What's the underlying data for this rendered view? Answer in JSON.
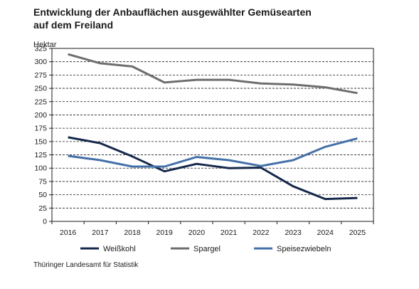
{
  "chart_data": {
    "type": "line",
    "title": "Entwicklung der Anbauflächen ausgewählter Gemüsearten auf dem Freiland",
    "title_lines": [
      "Entwicklung der Anbauflächen ausgewählter Gemüsearten",
      "auf dem Freiland"
    ],
    "ylabel": "Hektar",
    "xlabel": "",
    "x": [
      "2016",
      "2017",
      "2018",
      "2019",
      "2020",
      "2021",
      "2022",
      "2023",
      "2024",
      "2025"
    ],
    "ylim": [
      0,
      325
    ],
    "yticks": [
      0,
      25,
      50,
      75,
      100,
      125,
      150,
      175,
      200,
      225,
      250,
      275,
      300,
      325
    ],
    "grid": "horizontal dashed",
    "legend_position": "bottom",
    "series": [
      {
        "name": "Weißkohl",
        "color": "#15284b",
        "values": [
          158,
          147,
          122,
          94,
          108,
          100,
          101,
          66,
          42,
          44
        ]
      },
      {
        "name": "Spargel",
        "color": "#6e6e6e",
        "values": [
          314,
          297,
          291,
          261,
          266,
          266,
          259,
          257,
          252,
          241
        ]
      },
      {
        "name": "Speisezwiebeln",
        "color": "#4470a8",
        "values": [
          123,
          115,
          103,
          103,
          121,
          115,
          104,
          115,
          140,
          156
        ]
      }
    ]
  },
  "source": "Thüringer Landesamt für Statistik"
}
